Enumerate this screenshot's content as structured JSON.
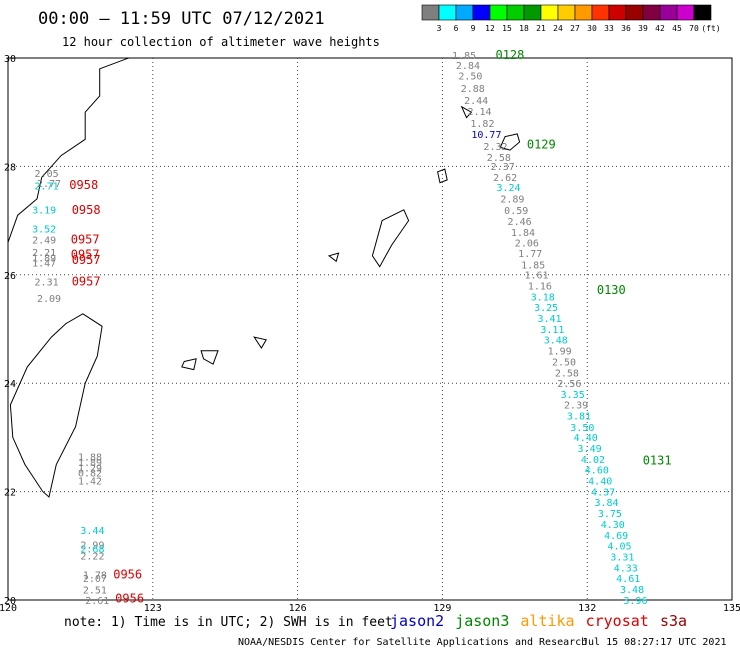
{
  "header": {
    "title": "00:00 – 11:59 UTC 07/12/2021",
    "subtitle": "12 hour collection of altimeter wave heights"
  },
  "colorbar": {
    "colors": [
      "#7f7f7f",
      "#00ffff",
      "#00aaff",
      "#0000ff",
      "#00ff00",
      "#00cc00",
      "#009900",
      "#ffff00",
      "#ffcc00",
      "#ff9900",
      "#ff3300",
      "#cc0000",
      "#990000",
      "#800040",
      "#990099",
      "#cc00cc",
      "#000000"
    ],
    "labels": [
      "3",
      "6",
      "9",
      "12",
      "15",
      "18",
      "21",
      "24",
      "27",
      "30",
      "33",
      "36",
      "39",
      "42",
      "45",
      "70",
      "(ft)"
    ]
  },
  "axes": {
    "x_ticks": [
      "120",
      "123",
      "126",
      "129",
      "132",
      "135"
    ],
    "y_ticks": [
      "30",
      "28",
      "26",
      "24",
      "22",
      "20"
    ]
  },
  "footer": {
    "note": "note: 1) Time is in UTC; 2) SWH is in feet",
    "satellites": [
      {
        "name": "jason2",
        "color": "#0000cc"
      },
      {
        "name": "jason3",
        "color": "#008800"
      },
      {
        "name": "altika",
        "color": "#ff9900"
      },
      {
        "name": "cryosat",
        "color": "#dd0000"
      },
      {
        "name": "s3a",
        "color": "#990000"
      }
    ],
    "credit": "NOAA/NESDIS Center for Satellite Applications and Research",
    "timestamp": "Jul 15 08:27:17 UTC 2021"
  },
  "track_times": [
    {
      "text": "0128",
      "lon": 130.1,
      "lat": 29.98,
      "color": "#008800"
    },
    {
      "text": "0129",
      "lon": 130.75,
      "lat": 28.33,
      "color": "#008800"
    },
    {
      "text": "0130",
      "lon": 132.2,
      "lat": 25.65,
      "color": "#008800"
    },
    {
      "text": "0131",
      "lon": 133.15,
      "lat": 22.5,
      "color": "#008800"
    },
    {
      "text": "0958",
      "lon": 121.27,
      "lat": 27.58,
      "color": "#dd0000"
    },
    {
      "text": "0958",
      "lon": 121.32,
      "lat": 27.12,
      "color": "#dd0000"
    },
    {
      "text": "0957",
      "lon": 121.3,
      "lat": 26.58,
      "color": "#dd0000"
    },
    {
      "text": "0957",
      "lon": 121.3,
      "lat": 26.3,
      "color": "#dd0000"
    },
    {
      "text": "0957",
      "lon": 121.32,
      "lat": 26.2,
      "color": "#dd0000"
    },
    {
      "text": "0957",
      "lon": 121.32,
      "lat": 25.8,
      "color": "#dd0000"
    },
    {
      "text": "0956",
      "lon": 122.18,
      "lat": 20.4,
      "color": "#dd0000"
    },
    {
      "text": "0956",
      "lon": 122.22,
      "lat": 19.95,
      "color": "#dd0000"
    }
  ],
  "wave_heights": [
    {
      "text": "1.85",
      "lon": 129.2,
      "lat": 29.98,
      "color": "#7f7f7f"
    },
    {
      "text": "2.84",
      "lon": 129.28,
      "lat": 29.8,
      "color": "#7f7f7f"
    },
    {
      "text": "2.50",
      "lon": 129.33,
      "lat": 29.6,
      "color": "#7f7f7f"
    },
    {
      "text": "2.88",
      "lon": 129.38,
      "lat": 29.37,
      "color": "#7f7f7f"
    },
    {
      "text": "2.44",
      "lon": 129.45,
      "lat": 29.15,
      "color": "#7f7f7f"
    },
    {
      "text": "2.14",
      "lon": 129.52,
      "lat": 28.95,
      "color": "#7f7f7f"
    },
    {
      "text": "1.82",
      "lon": 129.58,
      "lat": 28.73,
      "color": "#7f7f7f"
    },
    {
      "text": "10.77",
      "lon": 129.6,
      "lat": 28.52,
      "color": "#0000cc"
    },
    {
      "text": "2.32",
      "lon": 129.85,
      "lat": 28.3,
      "color": "#7f7f7f"
    },
    {
      "text": "2.58",
      "lon": 129.92,
      "lat": 28.1,
      "color": "#7f7f7f"
    },
    {
      "text": "2.37",
      "lon": 130.0,
      "lat": 27.93,
      "color": "#7f7f7f"
    },
    {
      "text": "2.62",
      "lon": 130.05,
      "lat": 27.73,
      "color": "#7f7f7f"
    },
    {
      "text": "3.24",
      "lon": 130.12,
      "lat": 27.55,
      "color": "#00cccc"
    },
    {
      "text": "2.89",
      "lon": 130.2,
      "lat": 27.33,
      "color": "#7f7f7f"
    },
    {
      "text": "0.59",
      "lon": 130.28,
      "lat": 27.12,
      "color": "#7f7f7f"
    },
    {
      "text": "2.46",
      "lon": 130.35,
      "lat": 26.92,
      "color": "#7f7f7f"
    },
    {
      "text": "1.84",
      "lon": 130.42,
      "lat": 26.72,
      "color": "#7f7f7f"
    },
    {
      "text": "2.06",
      "lon": 130.5,
      "lat": 26.52,
      "color": "#7f7f7f"
    },
    {
      "text": "1.77",
      "lon": 130.57,
      "lat": 26.33,
      "color": "#7f7f7f"
    },
    {
      "text": "1.85",
      "lon": 130.63,
      "lat": 26.12,
      "color": "#7f7f7f"
    },
    {
      "text": "1.61",
      "lon": 130.7,
      "lat": 25.93,
      "color": "#7f7f7f"
    },
    {
      "text": "1.16",
      "lon": 130.77,
      "lat": 25.73,
      "color": "#7f7f7f"
    },
    {
      "text": "3.18",
      "lon": 130.83,
      "lat": 25.53,
      "color": "#00cccc"
    },
    {
      "text": "3.25",
      "lon": 130.9,
      "lat": 25.33,
      "color": "#00cccc"
    },
    {
      "text": "3.41",
      "lon": 130.97,
      "lat": 25.13,
      "color": "#00cccc"
    },
    {
      "text": "3.11",
      "lon": 131.03,
      "lat": 24.93,
      "color": "#00cccc"
    },
    {
      "text": "3.48",
      "lon": 131.1,
      "lat": 24.73,
      "color": "#00cccc"
    },
    {
      "text": "1.99",
      "lon": 131.18,
      "lat": 24.53,
      "color": "#7f7f7f"
    },
    {
      "text": "2.50",
      "lon": 131.27,
      "lat": 24.33,
      "color": "#7f7f7f"
    },
    {
      "text": "2.58",
      "lon": 131.33,
      "lat": 24.12,
      "color": "#7f7f7f"
    },
    {
      "text": "2.56",
      "lon": 131.38,
      "lat": 23.93,
      "color": "#7f7f7f"
    },
    {
      "text": "3.35",
      "lon": 131.45,
      "lat": 23.73,
      "color": "#00cccc"
    },
    {
      "text": "2.39",
      "lon": 131.52,
      "lat": 23.53,
      "color": "#7f7f7f"
    },
    {
      "text": "3.81",
      "lon": 131.58,
      "lat": 23.33,
      "color": "#00cccc"
    },
    {
      "text": "3.50",
      "lon": 131.65,
      "lat": 23.12,
      "color": "#00cccc"
    },
    {
      "text": "4.40",
      "lon": 131.72,
      "lat": 22.93,
      "color": "#00cccc"
    },
    {
      "text": "3.49",
      "lon": 131.8,
      "lat": 22.73,
      "color": "#00cccc"
    },
    {
      "text": "4.02",
      "lon": 131.87,
      "lat": 22.53,
      "color": "#00cccc"
    },
    {
      "text": "4.60",
      "lon": 131.95,
      "lat": 22.33,
      "color": "#00cccc"
    },
    {
      "text": "4.40",
      "lon": 132.02,
      "lat": 22.13,
      "color": "#00cccc"
    },
    {
      "text": "4.37",
      "lon": 132.08,
      "lat": 21.93,
      "color": "#00cccc"
    },
    {
      "text": "3.84",
      "lon": 132.15,
      "lat": 21.73,
      "color": "#00cccc"
    },
    {
      "text": "3.75",
      "lon": 132.22,
      "lat": 21.53,
      "color": "#00cccc"
    },
    {
      "text": "4.30",
      "lon": 132.28,
      "lat": 21.33,
      "color": "#00cccc"
    },
    {
      "text": "4.69",
      "lon": 132.35,
      "lat": 21.13,
      "color": "#00cccc"
    },
    {
      "text": "4.05",
      "lon": 132.42,
      "lat": 20.93,
      "color": "#00cccc"
    },
    {
      "text": "3.31",
      "lon": 132.48,
      "lat": 20.73,
      "color": "#00cccc"
    },
    {
      "text": "4.33",
      "lon": 132.55,
      "lat": 20.53,
      "color": "#00cccc"
    },
    {
      "text": "4.61",
      "lon": 132.6,
      "lat": 20.33,
      "color": "#00cccc"
    },
    {
      "text": "3.48",
      "lon": 132.68,
      "lat": 20.13,
      "color": "#00cccc"
    },
    {
      "text": "3.96",
      "lon": 132.75,
      "lat": 19.93,
      "color": "#00cccc"
    },
    {
      "text": "2.05",
      "lon": 120.55,
      "lat": 27.8,
      "color": "#7f7f7f"
    },
    {
      "text": "2.77",
      "lon": 120.6,
      "lat": 27.62,
      "color": "#7f7f7f"
    },
    {
      "text": "2.71",
      "lon": 120.55,
      "lat": 27.57,
      "color": "#00cccc"
    },
    {
      "text": "3.19",
      "lon": 120.5,
      "lat": 27.13,
      "color": "#00cccc"
    },
    {
      "text": "3.52",
      "lon": 120.5,
      "lat": 26.78,
      "color": "#00cccc"
    },
    {
      "text": "2.49",
      "lon": 120.5,
      "lat": 26.58,
      "color": "#7f7f7f"
    },
    {
      "text": "2.21",
      "lon": 120.5,
      "lat": 26.35,
      "color": "#7f7f7f"
    },
    {
      "text": "1.89",
      "lon": 120.5,
      "lat": 26.25,
      "color": "#7f7f7f"
    },
    {
      "text": "1.47",
      "lon": 120.5,
      "lat": 26.15,
      "color": "#7f7f7f"
    },
    {
      "text": "2.31",
      "lon": 120.55,
      "lat": 25.8,
      "color": "#7f7f7f"
    },
    {
      "text": "2.09",
      "lon": 120.6,
      "lat": 25.5,
      "color": "#7f7f7f"
    },
    {
      "text": "1.88",
      "lon": 121.45,
      "lat": 22.57,
      "color": "#7f7f7f"
    },
    {
      "text": "1.89",
      "lon": 121.45,
      "lat": 22.47,
      "color": "#7f7f7f"
    },
    {
      "text": "1.29",
      "lon": 121.45,
      "lat": 22.37,
      "color": "#7f7f7f"
    },
    {
      "text": "0.82",
      "lon": 121.45,
      "lat": 22.28,
      "color": "#7f7f7f"
    },
    {
      "text": "1.42",
      "lon": 121.45,
      "lat": 22.13,
      "color": "#7f7f7f"
    },
    {
      "text": "3.44",
      "lon": 121.5,
      "lat": 21.22,
      "color": "#00cccc"
    },
    {
      "text": "2.99",
      "lon": 121.5,
      "lat": 20.95,
      "color": "#7f7f7f"
    },
    {
      "text": "2.68",
      "lon": 121.5,
      "lat": 20.88,
      "color": "#00cccc"
    },
    {
      "text": "2.22",
      "lon": 121.5,
      "lat": 20.75,
      "color": "#7f7f7f"
    },
    {
      "text": "1.78",
      "lon": 121.55,
      "lat": 20.4,
      "color": "#7f7f7f"
    },
    {
      "text": "2.07",
      "lon": 121.55,
      "lat": 20.33,
      "color": "#7f7f7f"
    },
    {
      "text": "2.51",
      "lon": 121.55,
      "lat": 20.12,
      "color": "#7f7f7f"
    },
    {
      "text": "2.61",
      "lon": 121.6,
      "lat": 19.93,
      "color": "#7f7f7f"
    }
  ],
  "islands": [
    {
      "name": "yakushima",
      "points": [
        [
          130.3,
          28.55
        ],
        [
          130.55,
          28.6
        ],
        [
          130.6,
          28.45
        ],
        [
          130.4,
          28.3
        ],
        [
          130.2,
          28.35
        ]
      ]
    },
    {
      "name": "tokunoshima",
      "points": [
        [
          128.9,
          27.9
        ],
        [
          129.05,
          27.95
        ],
        [
          129.1,
          27.75
        ],
        [
          128.95,
          27.7
        ]
      ]
    },
    {
      "name": "okinawa",
      "points": [
        [
          127.75,
          27.0
        ],
        [
          128.2,
          27.2
        ],
        [
          128.3,
          27.0
        ],
        [
          127.95,
          26.55
        ],
        [
          127.7,
          26.15
        ],
        [
          127.55,
          26.35
        ]
      ]
    },
    {
      "name": "kume",
      "points": [
        [
          126.65,
          26.35
        ],
        [
          126.85,
          26.4
        ],
        [
          126.8,
          26.25
        ]
      ]
    },
    {
      "name": "miyako",
      "points": [
        [
          125.1,
          24.85
        ],
        [
          125.35,
          24.8
        ],
        [
          125.25,
          24.65
        ]
      ]
    },
    {
      "name": "ishigaki",
      "points": [
        [
          124.0,
          24.6
        ],
        [
          124.35,
          24.6
        ],
        [
          124.25,
          24.35
        ],
        [
          124.05,
          24.45
        ]
      ]
    },
    {
      "name": "iriomote",
      "points": [
        [
          123.65,
          24.4
        ],
        [
          123.9,
          24.45
        ],
        [
          123.85,
          24.25
        ],
        [
          123.6,
          24.3
        ]
      ]
    },
    {
      "name": "taiwan",
      "points": [
        [
          121.55,
          25.28
        ],
        [
          121.95,
          25.05
        ],
        [
          121.85,
          24.5
        ],
        [
          121.6,
          24.0
        ],
        [
          121.4,
          23.2
        ],
        [
          121.0,
          22.5
        ],
        [
          120.85,
          21.9
        ],
        [
          120.72,
          22.0
        ],
        [
          120.35,
          22.5
        ],
        [
          120.1,
          23.0
        ],
        [
          120.05,
          23.6
        ],
        [
          120.4,
          24.3
        ],
        [
          120.9,
          24.85
        ],
        [
          121.2,
          25.1
        ]
      ]
    },
    {
      "name": "china_coast",
      "points": [
        [
          122.5,
          30.0
        ],
        [
          121.9,
          29.8
        ],
        [
          121.9,
          29.3
        ],
        [
          121.6,
          29.0
        ],
        [
          121.6,
          28.5
        ],
        [
          121.1,
          28.2
        ],
        [
          120.7,
          27.8
        ],
        [
          120.6,
          27.4
        ],
        [
          120.2,
          27.1
        ],
        [
          120.0,
          26.6
        ],
        [
          120.0,
          26.3
        ]
      ]
    },
    {
      "name": "small_islands_ne",
      "points": [
        [
          129.4,
          29.1
        ],
        [
          129.6,
          29.0
        ],
        [
          129.5,
          28.9
        ]
      ]
    }
  ]
}
